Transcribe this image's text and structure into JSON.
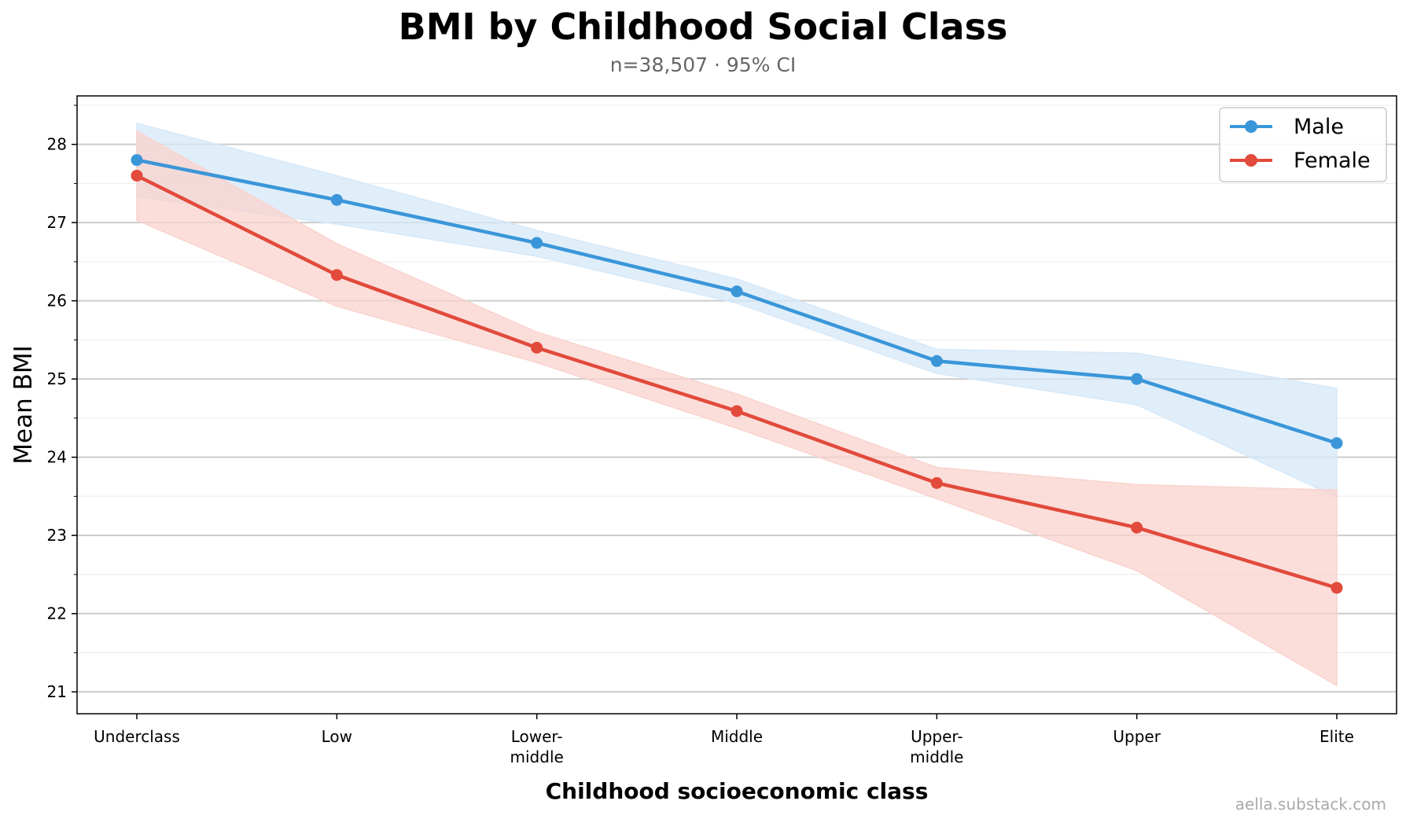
{
  "chart_data": {
    "type": "line",
    "title": "BMI by Childhood Social Class",
    "subtitle": "n=38,507 · 95% CI",
    "xlabel": "Childhood socioeconomic class",
    "ylabel": "Mean BMI",
    "categories": [
      [
        "Underclass"
      ],
      [
        "Low"
      ],
      [
        "Lower-",
        "middle"
      ],
      [
        "Middle"
      ],
      [
        "Upper-",
        "middle"
      ],
      [
        "Upper"
      ],
      [
        "Elite"
      ]
    ],
    "ylim": [
      20.72,
      28.62
    ],
    "yticks": [
      21,
      22,
      23,
      24,
      25,
      26,
      27,
      28
    ],
    "grid": true,
    "legend_position": "top-right",
    "series": [
      {
        "name": "Male",
        "color": "#3a96d9",
        "band_color": "#d6e8f8",
        "values": [
          27.8,
          27.29,
          26.74,
          26.12,
          25.23,
          25.0,
          24.18
        ],
        "ci_low": [
          27.33,
          26.98,
          26.57,
          25.97,
          25.07,
          24.67,
          23.49
        ],
        "ci_high": [
          28.27,
          27.6,
          26.9,
          26.28,
          25.38,
          25.33,
          24.88
        ]
      },
      {
        "name": "Female",
        "color": "#e24a3b",
        "band_color": "#f9d3ce",
        "values": [
          27.6,
          26.33,
          25.4,
          24.59,
          23.67,
          23.1,
          22.33
        ],
        "ci_low": [
          27.03,
          25.93,
          25.21,
          24.37,
          23.47,
          22.55,
          21.08
        ],
        "ci_high": [
          28.17,
          26.73,
          25.6,
          24.81,
          23.87,
          23.65,
          23.58
        ]
      }
    ]
  },
  "footer": {
    "watermark": "aella.substack.com"
  }
}
